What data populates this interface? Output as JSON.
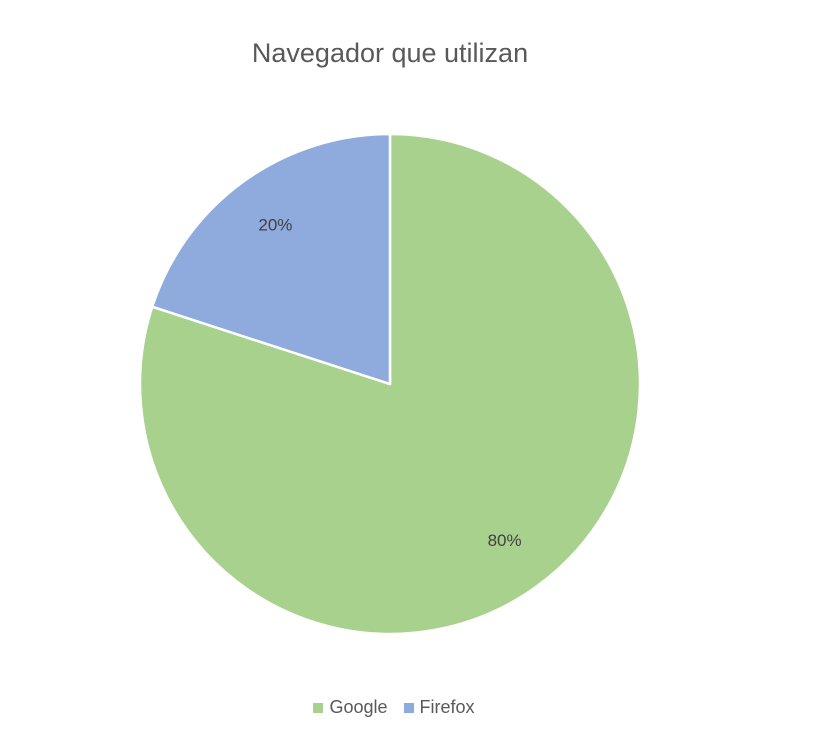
{
  "chart_data": {
    "type": "pie",
    "title": "Navegador que utilizan",
    "categories": [
      "Google",
      "Firefox"
    ],
    "values": [
      80,
      20
    ],
    "data_labels": [
      "80%",
      "20%"
    ],
    "colors": [
      "#a9d18e",
      "#8faadc"
    ],
    "legend_position": "bottom",
    "start_angle": "top",
    "direction": "clockwise"
  }
}
